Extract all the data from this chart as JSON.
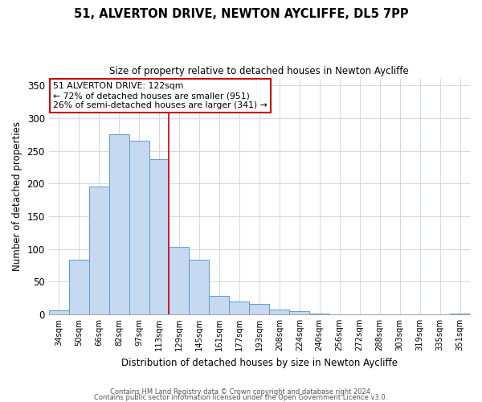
{
  "title": "51, ALVERTON DRIVE, NEWTON AYCLIFFE, DL5 7PP",
  "subtitle": "Size of property relative to detached houses in Newton Aycliffe",
  "xlabel": "Distribution of detached houses by size in Newton Aycliffe",
  "ylabel": "Number of detached properties",
  "bar_labels": [
    "34sqm",
    "50sqm",
    "66sqm",
    "82sqm",
    "97sqm",
    "113sqm",
    "129sqm",
    "145sqm",
    "161sqm",
    "177sqm",
    "193sqm",
    "208sqm",
    "224sqm",
    "240sqm",
    "256sqm",
    "272sqm",
    "288sqm",
    "303sqm",
    "319sqm",
    "335sqm",
    "351sqm"
  ],
  "bar_heights": [
    6,
    84,
    195,
    275,
    265,
    237,
    103,
    84,
    28,
    20,
    16,
    7,
    5,
    1,
    0,
    0,
    0,
    0,
    0,
    0,
    1
  ],
  "bar_color": "#c5d9f1",
  "bar_edge_color": "#5b9bd5",
  "vline_x": 5.5,
  "vline_color": "#cc0000",
  "annotation_text_line1": "51 ALVERTON DRIVE: 122sqm",
  "annotation_text_line2": "← 72% of detached houses are smaller (951)",
  "annotation_text_line3": "26% of semi-detached houses are larger (341) →",
  "box_edge_color": "#cc0000",
  "ylim": [
    0,
    360
  ],
  "yticks": [
    0,
    50,
    100,
    150,
    200,
    250,
    300,
    350
  ],
  "footer_line1": "Contains HM Land Registry data © Crown copyright and database right 2024.",
  "footer_line2": "Contains public sector information licensed under the Open Government Licence v3.0."
}
